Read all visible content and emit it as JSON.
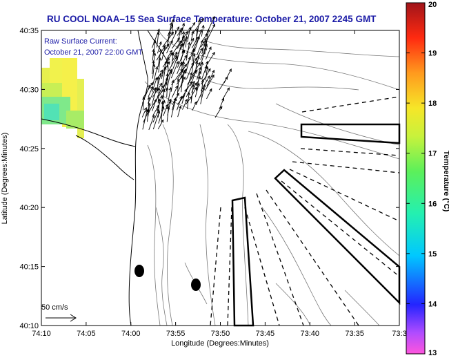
{
  "title": "RU COOL  NOAA–15  Sea Surface Temperature:  October 21, 2007 2245 GMT",
  "current_label_line1": "Raw Surface Current:",
  "current_label_line2": "October 21, 2007 22:00 GMT",
  "scale_label": "50 cm/s",
  "xlabel": "Longitude (Degrees:Minutes)",
  "ylabel": "Latitude (Degrees:Minutes)",
  "x_ticks": [
    "74:10",
    "74:05",
    "74:00",
    "73:55",
    "73:50",
    "73:45",
    "73:40",
    "73:35",
    "73:3"
  ],
  "y_ticks": [
    "40:35",
    "40:30",
    "40:25",
    "40:20",
    "40:15",
    "40:10"
  ],
  "colorbar": {
    "label": "Temperature (°C)",
    "ticks": [
      "20",
      "19",
      "18",
      "17",
      "16",
      "15",
      "14",
      "13"
    ],
    "min": 13,
    "max": 20
  },
  "colors": {
    "title": "#1a1aa6",
    "land": "#ffffff",
    "sst_patch": [
      "#f2f24a",
      "#b8ef4a",
      "#5fe6a6"
    ]
  }
}
